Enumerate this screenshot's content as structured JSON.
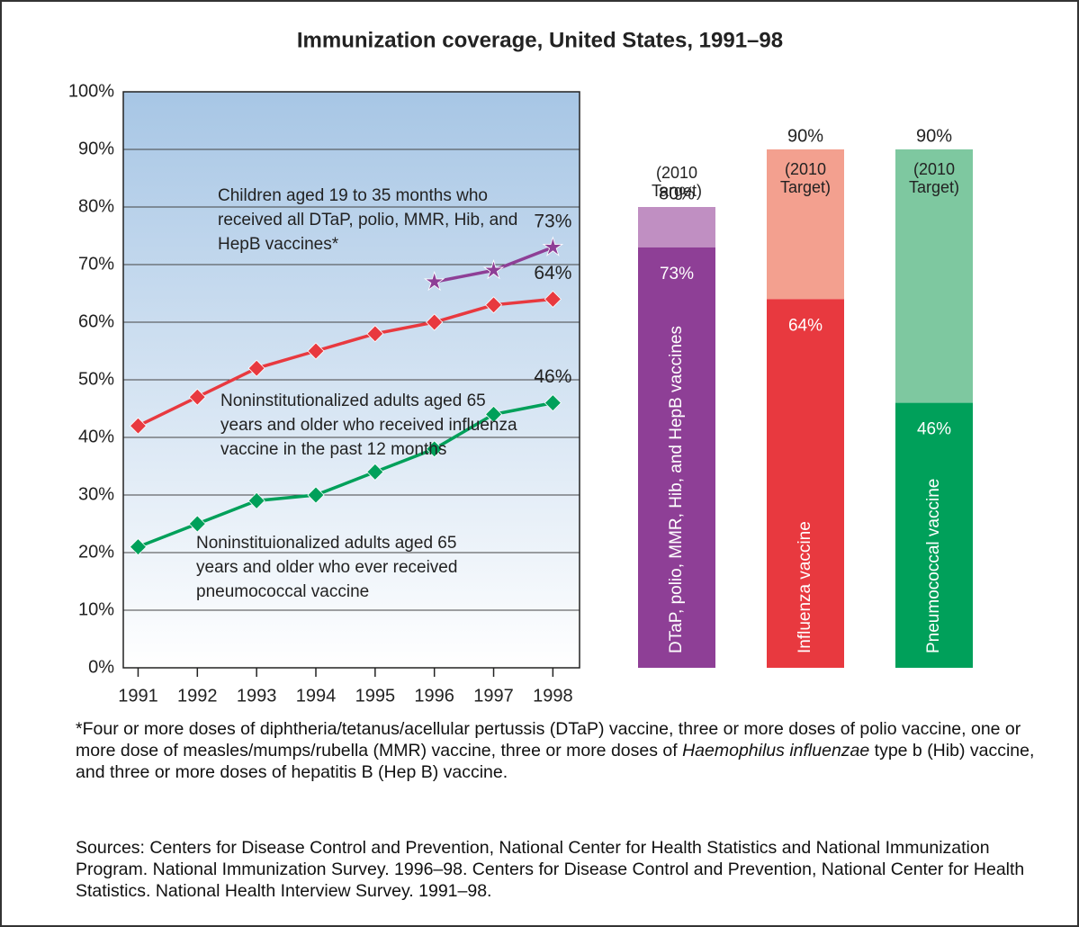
{
  "title": "Immunization coverage, United States, 1991–98",
  "chart_data": [
    {
      "type": "line",
      "x": [
        1991,
        1992,
        1993,
        1994,
        1995,
        1996,
        1997,
        1998
      ],
      "xlim": [
        1990.75,
        1998.45
      ],
      "xticks": [
        1991,
        1992,
        1993,
        1994,
        1995,
        1996,
        1997,
        1998
      ],
      "ylim": [
        0,
        100
      ],
      "yticks": [
        {
          "value": 0,
          "label": "0%"
        },
        {
          "value": 10,
          "label": "10%"
        },
        {
          "value": 20,
          "label": "20%"
        },
        {
          "value": 30,
          "label": "30%"
        },
        {
          "value": 40,
          "label": "40%"
        },
        {
          "value": 50,
          "label": "50%"
        },
        {
          "value": 60,
          "label": "60%"
        },
        {
          "value": 70,
          "label": "70%"
        },
        {
          "value": 80,
          "label": "80%"
        },
        {
          "value": 90,
          "label": "90%"
        },
        {
          "value": 100,
          "label": "100%"
        }
      ],
      "grid": true,
      "series": [
        {
          "name": "Children aged 19 to 35 months who received all DTaP, polio, MMR, Hib, and HepB vaccines*",
          "color": "#8e3f96",
          "marker": "star",
          "values": [
            null,
            null,
            null,
            null,
            null,
            67,
            69,
            73
          ],
          "value_labels": [
            null,
            null,
            null,
            null,
            null,
            null,
            null,
            "73%"
          ]
        },
        {
          "name": "Noninstitutionalized adults aged 65 years and older who received influenza vaccine in the past 12 months",
          "color": "#e8393f",
          "marker": "diamond",
          "values": [
            42,
            47,
            52,
            55,
            58,
            60,
            63,
            64
          ],
          "value_labels": [
            null,
            null,
            null,
            null,
            null,
            null,
            null,
            "64%"
          ]
        },
        {
          "name": "Noninstituionalized adults aged 65 years and older who ever received pneumococcal vaccine",
          "color": "#00a05a",
          "marker": "diamond",
          "values": [
            21,
            25,
            29,
            30,
            34,
            38,
            44,
            46
          ],
          "value_labels": [
            null,
            null,
            null,
            null,
            null,
            null,
            null,
            "46%"
          ]
        }
      ]
    },
    {
      "type": "bar",
      "categories": [
        "DTaP, polio, MMR, Hib, and HepB vaccines",
        "Influenza vaccine",
        "Pneumococcal vaccine"
      ],
      "ylim": [
        0,
        100
      ],
      "values": [
        73,
        64,
        46
      ],
      "value_labels": [
        "73%",
        "64%",
        "46%"
      ],
      "colors": [
        "#8e3f96",
        "#e8393f",
        "#00a05a"
      ],
      "target_values": [
        80,
        90,
        90
      ],
      "target_value_labels": [
        "80%",
        "90%",
        "90%"
      ],
      "target_colors": [
        "#c08fc2",
        "#f3a08f",
        "#7ec8a0"
      ],
      "target_note": "(2010 Target)"
    }
  ],
  "footnote": [
    "*Four or more doses of diphtheria/tetanus/acellular pertussis (DTaP) vaccine, three or more doses of polio vaccine, one or more dose of measles/mumps/rubella (MMR) vaccine, three or more doses of ",
    "Haemophilus influenzae",
    " type b (Hib) vaccine, and three or more doses of hepatitis B (Hep B) vaccine."
  ],
  "sources": "Sources:  Centers for Disease Control and Prevention, National Center for Health Statistics and National Immunization Program. National Immunization Survey. 1996–98.  Centers for Disease Control and Prevention, National Center for Health Statistics. National Health Interview Survey. 1991–98."
}
